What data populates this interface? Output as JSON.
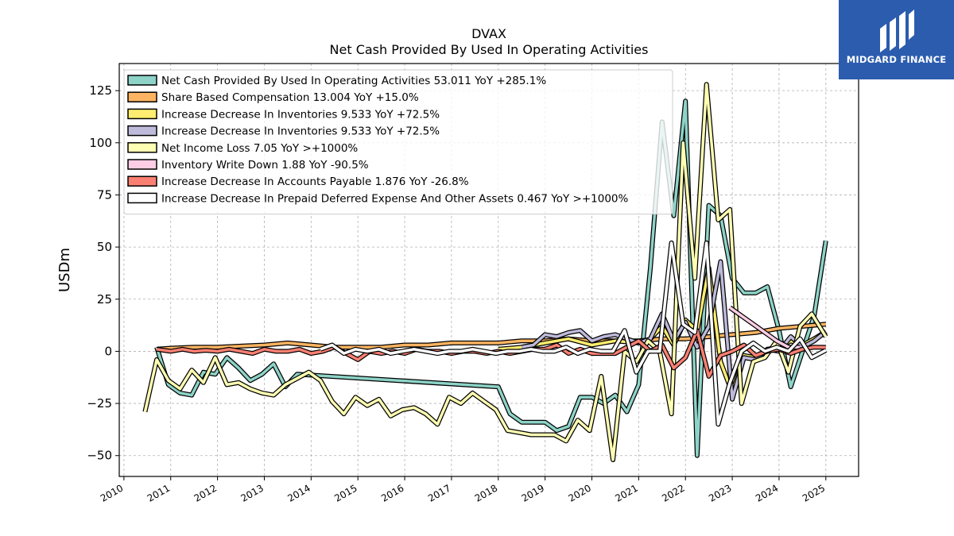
{
  "logo": {
    "text": "MIDGARD FINANCE",
    "bg": "#2b5cae"
  },
  "chart_data": {
    "type": "line",
    "title": "DVAX",
    "subtitle": "Net Cash Provided By Used In Operating Activities",
    "ylabel": "USDm",
    "xlabel": "",
    "xlim": [
      2009.9,
      2025.7
    ],
    "ylim": [
      -60,
      138
    ],
    "yticks": [
      -50,
      -25,
      0,
      25,
      50,
      75,
      100,
      125
    ],
    "ytick_labels": [
      "−50",
      "−25",
      "0",
      "25",
      "50",
      "75",
      "100",
      "125"
    ],
    "xticks": [
      2010,
      2011,
      2012,
      2013,
      2014,
      2015,
      2016,
      2017,
      2018,
      2019,
      2020,
      2021,
      2022,
      2023,
      2024,
      2025
    ],
    "xtick_labels": [
      "2010",
      "2011",
      "2012",
      "2013",
      "2014",
      "2015",
      "2016",
      "2017",
      "2018",
      "2019",
      "2020",
      "2021",
      "2022",
      "2023",
      "2024",
      "2025"
    ],
    "grid": true,
    "legend_position": "top-left",
    "series": [
      {
        "name": "Net Cash Provided By Used In Operating Activities  53.011 YoY +285.1%",
        "color": "#8dd3c7",
        "x": [
          2010.7,
          2010.95,
          2011.2,
          2011.45,
          2011.7,
          2011.95,
          2012.2,
          2012.45,
          2012.7,
          2012.95,
          2013.2,
          2013.45,
          2013.7,
          2018.0,
          2018.25,
          2018.5,
          2018.75,
          2019.0,
          2019.25,
          2019.5,
          2019.75,
          2020.0,
          2020.25,
          2020.5,
          2020.75,
          2021.0,
          2021.25,
          2021.5,
          2021.75,
          2022.0,
          2022.25,
          2022.5,
          2022.75,
          2023.0,
          2023.25,
          2023.5,
          2023.75,
          2024.0,
          2024.25,
          2024.5,
          2024.75,
          2025.0
        ],
        "y": [
          2,
          -16,
          -20,
          -21,
          -10,
          -11,
          -3,
          -8,
          -14,
          -11,
          -6,
          -17,
          -11,
          -17,
          -30,
          -34,
          -34,
          -34,
          -38,
          -36,
          -22,
          -22,
          -25,
          -21,
          -29,
          -16,
          40,
          110,
          65,
          120,
          -50,
          70,
          65,
          35,
          28,
          28,
          31,
          10,
          -17,
          0,
          17,
          53
        ]
      },
      {
        "name": "Share Based Compensation  13.004 YoY +15.0%",
        "color": "#fdb462",
        "x": [
          2010.7,
          2011.0,
          2011.5,
          2012.0,
          2012.5,
          2013.0,
          2013.5,
          2014.0,
          2014.5,
          2015.0,
          2015.5,
          2016.0,
          2016.5,
          2017.0,
          2017.5,
          2018.0,
          2018.5,
          2019.0,
          2019.5,
          2020.0,
          2020.5,
          2021.0,
          2021.5,
          2022.0,
          2022.5,
          2023.0,
          2023.5,
          2024.0,
          2024.5,
          2025.0
        ],
        "y": [
          1,
          1.5,
          2,
          2,
          2.5,
          3,
          4,
          3,
          2,
          2,
          2,
          3,
          3,
          4,
          4,
          4,
          5,
          5,
          6,
          5,
          5,
          5,
          6,
          6,
          7,
          8,
          9,
          11,
          12,
          13
        ]
      },
      {
        "name": "Increase Decrease In Inventories  9.533 YoY +72.5%",
        "color": "#ffed6f",
        "x": [
          2018.0,
          2018.5,
          2019.0,
          2019.5,
          2020.0,
          2020.5,
          2021.0,
          2021.25,
          2021.5,
          2021.75,
          2022.0,
          2022.25,
          2022.5,
          2022.75,
          2023.0,
          2023.25,
          2023.5,
          2023.75,
          2024.0,
          2024.25,
          2024.5,
          2024.75,
          2025.0
        ],
        "y": [
          1,
          2,
          4,
          6,
          3,
          5,
          4,
          6,
          12,
          3,
          15,
          10,
          40,
          -5,
          -20,
          -2,
          -3,
          1,
          2,
          5,
          3,
          6,
          9.5
        ]
      },
      {
        "name": "Increase Decrease In Inventories  9.533 YoY +72.5%",
        "color": "#bebada",
        "x": [
          2018.5,
          2018.75,
          2019.0,
          2019.25,
          2019.5,
          2019.75,
          2020.0,
          2020.25,
          2020.5,
          2020.75,
          2021.0,
          2021.25,
          2021.5,
          2021.75,
          2022.0,
          2022.25,
          2022.5,
          2022.75,
          2023.0,
          2023.25,
          2023.5,
          2023.75,
          2024.0,
          2024.25,
          2024.5,
          2024.75,
          2025.0
        ],
        "y": [
          2,
          3,
          8,
          7,
          9,
          10,
          5,
          7,
          8,
          6,
          4,
          6,
          18,
          5,
          14,
          2,
          12,
          43,
          -23,
          -3,
          -4,
          1,
          0,
          7,
          2,
          5,
          9.5
        ]
      },
      {
        "name": "Net Income Loss  7.05 YoY >+1000%",
        "color": "#ffffb3",
        "x": [
          2010.45,
          2010.7,
          2010.95,
          2011.2,
          2011.45,
          2011.7,
          2011.95,
          2012.2,
          2012.45,
          2012.7,
          2012.95,
          2013.2,
          2013.45,
          2013.7,
          2013.95,
          2014.2,
          2014.45,
          2014.7,
          2014.95,
          2015.2,
          2015.45,
          2015.7,
          2015.95,
          2016.2,
          2016.45,
          2016.7,
          2016.95,
          2017.2,
          2017.45,
          2017.7,
          2017.95,
          2018.2,
          2018.45,
          2018.7,
          2018.95,
          2019.2,
          2019.45,
          2019.7,
          2019.95,
          2020.2,
          2020.45,
          2020.7,
          2020.95,
          2021.2,
          2021.45,
          2021.7,
          2021.95,
          2022.2,
          2022.45,
          2022.7,
          2022.95,
          2023.2,
          2023.45,
          2023.7,
          2023.95,
          2024.2,
          2024.45,
          2024.7,
          2025.0
        ],
        "y": [
          -29,
          -4,
          -14,
          -18,
          -9,
          -15,
          -3,
          -16,
          -15,
          -18,
          -20,
          -21,
          -16,
          -13,
          -10,
          -14,
          -24,
          -30,
          -22,
          -26,
          -23,
          -31,
          -28,
          -27,
          -30,
          -35,
          -22,
          -25,
          -20,
          -24,
          -28,
          -38,
          -39,
          -40,
          -40,
          -40,
          -43,
          -33,
          -38,
          -12,
          -52,
          0,
          -5,
          5,
          0,
          -30,
          100,
          35,
          128,
          63,
          68,
          -25,
          -5,
          -3,
          5,
          -10,
          12,
          18,
          7
        ]
      },
      {
        "name": "Inventory Write Down  1.88 YoY -90.5%",
        "color": "#fccde5",
        "x": [
          2022.95,
          2023.2,
          2023.45,
          2023.7,
          2023.95,
          2024.2,
          2024.45
        ],
        "y": [
          21,
          17,
          13,
          9,
          5,
          2,
          2
        ]
      },
      {
        "name": "Increase Decrease In Accounts Payable  1.876 YoY -26.8%",
        "color": "#fb8072",
        "x": [
          2010.7,
          2011.0,
          2011.25,
          2011.5,
          2011.75,
          2012.0,
          2012.25,
          2012.5,
          2012.75,
          2013.0,
          2013.25,
          2013.5,
          2013.75,
          2014.0,
          2014.25,
          2014.5,
          2014.75,
          2015.0,
          2015.25,
          2015.5,
          2015.75,
          2016.0,
          2016.25,
          2016.5,
          2016.75,
          2017.0,
          2017.25,
          2017.5,
          2017.75,
          2018.0,
          2018.25,
          2018.5,
          2018.75,
          2019.0,
          2019.25,
          2019.5,
          2019.75,
          2020.0,
          2020.25,
          2020.5,
          2020.75,
          2021.0,
          2021.25,
          2021.5,
          2021.75,
          2022.0,
          2022.25,
          2022.5,
          2022.75,
          2023.0,
          2023.25,
          2023.5,
          2023.75,
          2024.0,
          2024.25,
          2024.5,
          2024.75,
          2025.0
        ],
        "y": [
          1,
          0,
          1,
          0,
          0.5,
          0,
          1,
          0,
          -1,
          1,
          0,
          0,
          1,
          -1,
          0,
          2,
          -1,
          -4,
          0,
          -1,
          0,
          -1,
          1,
          0,
          0,
          -1,
          0,
          0,
          -1,
          0,
          -1,
          0,
          1,
          1,
          3,
          -1,
          1,
          -1,
          -1,
          -1,
          2,
          5,
          0,
          3,
          -8,
          -3,
          10,
          -12,
          -2,
          0,
          3,
          -2,
          0,
          1,
          -1,
          1,
          2,
          1.9
        ]
      },
      {
        "name": "Increase Decrease In Prepaid Deferred Expense And Other Assets  0.467 YoY >+1000%",
        "color": "#ffffff",
        "x": [
          2014.2,
          2014.45,
          2014.7,
          2014.95,
          2015.2,
          2015.45,
          2015.7,
          2015.95,
          2016.2,
          2016.45,
          2016.7,
          2016.95,
          2017.2,
          2017.45,
          2017.7,
          2017.95,
          2018.2,
          2018.45,
          2018.7,
          2018.95,
          2019.2,
          2019.45,
          2019.7,
          2019.95,
          2020.2,
          2020.45,
          2020.7,
          2020.95,
          2021.2,
          2021.45,
          2021.7,
          2021.95,
          2022.2,
          2022.45,
          2022.7,
          2022.95,
          2023.2,
          2023.45,
          2023.7,
          2023.95,
          2024.2,
          2024.45,
          2024.7,
          2025.0
        ],
        "y": [
          1,
          3,
          -1,
          1,
          0,
          1,
          -1,
          0,
          1,
          0,
          -1,
          0,
          0,
          1,
          0,
          -1,
          0,
          0,
          1,
          0,
          0,
          2,
          -1,
          1,
          0,
          0,
          10,
          -10,
          0,
          0,
          52,
          13,
          9,
          52,
          -35,
          -15,
          0,
          4,
          0,
          2,
          0,
          6,
          -3,
          0.5
        ]
      }
    ]
  }
}
